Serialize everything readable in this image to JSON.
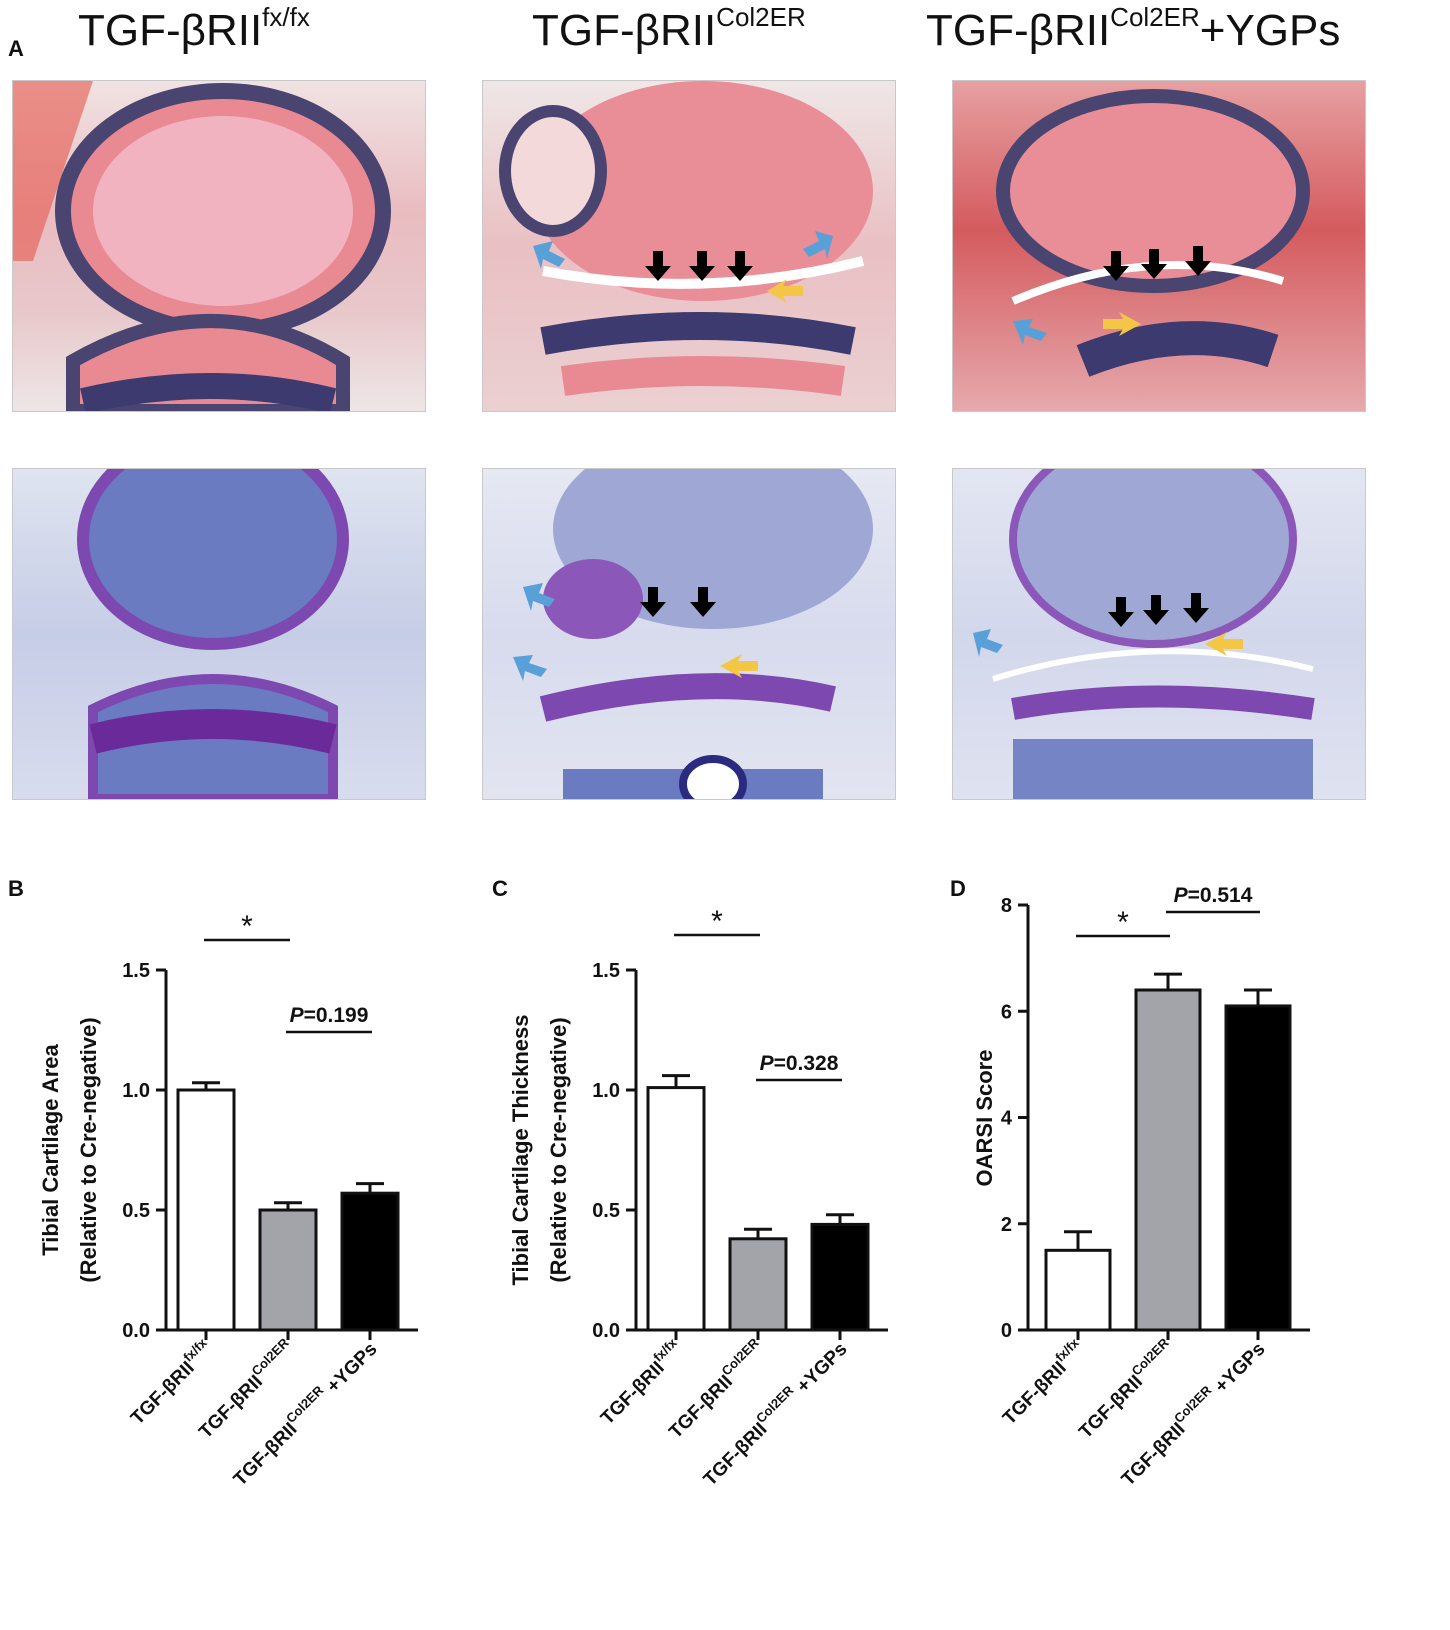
{
  "panel_a": {
    "letter": "A",
    "groups": [
      {
        "base": "TGF-βRII",
        "sup": "fx/fx",
        "suffix": ""
      },
      {
        "base": "TGF-βRII",
        "sup": "Col2ER",
        "suffix": ""
      },
      {
        "base": "TGF-βRII",
        "sup": "Col2ER",
        "suffix": "+YGPs"
      }
    ]
  },
  "chart_data": [
    {
      "panel": "B",
      "type": "bar",
      "ylabel": [
        "Tibial Cartilage Area",
        "(Relative to Cre-negative)"
      ],
      "ylim": [
        0,
        1.5
      ],
      "yticks": [
        "0.0",
        "0.5",
        "1.0",
        "1.5"
      ],
      "categories": [
        {
          "base": "TGF-βRII",
          "sup": "fx/fx",
          "suffix": ""
        },
        {
          "base": "TGF-βRII",
          "sup": "Col2ER",
          "suffix": ""
        },
        {
          "base": "TGF-βRII",
          "sup": "Col2ER",
          "suffix": " +YGPs"
        }
      ],
      "values": [
        1.0,
        0.5,
        0.57
      ],
      "errors": [
        0.03,
        0.03,
        0.04
      ],
      "bar_colors": [
        "#ffffff",
        "#a3a3aa",
        "#000000"
      ],
      "comparisons": [
        {
          "from": 0,
          "to": 1,
          "label": "*"
        },
        {
          "from": 1,
          "to": 2,
          "label": "=0.199",
          "p": "P"
        }
      ]
    },
    {
      "panel": "C",
      "type": "bar",
      "ylabel": [
        "Tibial Cartilage Thickness",
        "(Relative to Cre-negative)"
      ],
      "ylim": [
        0,
        1.5
      ],
      "yticks": [
        "0.0",
        "0.5",
        "1.0",
        "1.5"
      ],
      "categories": [
        {
          "base": "TGF-βRII",
          "sup": "fx/fx",
          "suffix": ""
        },
        {
          "base": "TGF-βRII",
          "sup": "Col2ER",
          "suffix": ""
        },
        {
          "base": "TGF-βRII",
          "sup": "Col2ER",
          "suffix": " +YGPs"
        }
      ],
      "values": [
        1.01,
        0.38,
        0.44
      ],
      "errors": [
        0.05,
        0.04,
        0.04
      ],
      "bar_colors": [
        "#ffffff",
        "#a3a3aa",
        "#000000"
      ],
      "comparisons": [
        {
          "from": 0,
          "to": 1,
          "label": "*"
        },
        {
          "from": 1,
          "to": 2,
          "label": "=0.328",
          "p": "P"
        }
      ]
    },
    {
      "panel": "D",
      "type": "bar",
      "ylabel": [
        "OARSI Score"
      ],
      "ylim": [
        0,
        8
      ],
      "yticks": [
        "0",
        "2",
        "4",
        "6",
        "8"
      ],
      "categories": [
        {
          "base": "TGF-βRII",
          "sup": "fx/fx",
          "suffix": ""
        },
        {
          "base": "TGF-βRII",
          "sup": "Col2ER",
          "suffix": ""
        },
        {
          "base": "TGF-βRII",
          "sup": "Col2ER",
          "suffix": " +YGPs"
        }
      ],
      "values": [
        1.5,
        6.4,
        6.1
      ],
      "errors": [
        0.35,
        0.3,
        0.3
      ],
      "bar_colors": [
        "#ffffff",
        "#a3a3aa",
        "#000000"
      ],
      "comparisons": [
        {
          "from": 0,
          "to": 1,
          "label": "*"
        },
        {
          "from": 1,
          "to": 2,
          "label": "=0.514",
          "p": "P"
        }
      ]
    }
  ]
}
